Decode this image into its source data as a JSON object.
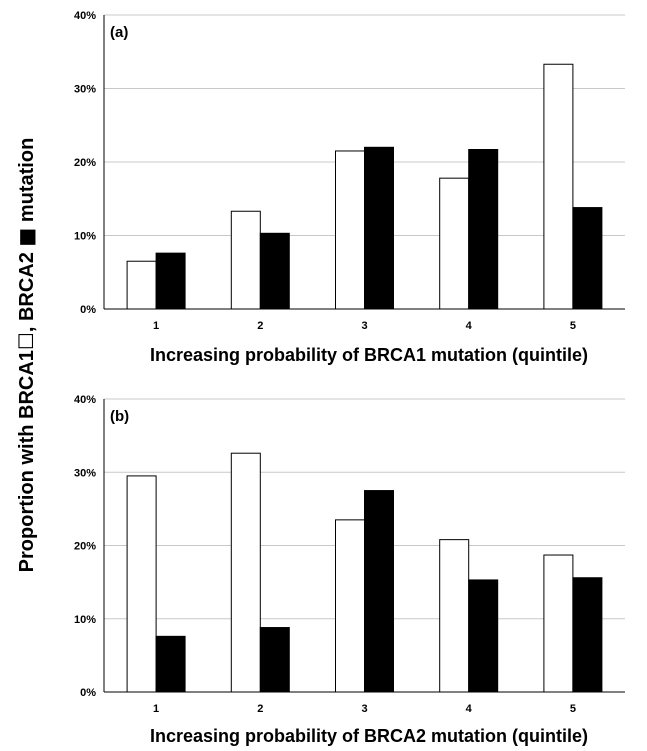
{
  "ylabel_parts": {
    "before": "Proportion with BRCA1",
    "after": ", BRCA2 ",
    "end": " mutation"
  },
  "colors": {
    "brca1": "#ffffff",
    "brca2": "#000000",
    "grid": "#c8c8c8"
  },
  "chart_data": [
    {
      "type": "bar",
      "panel_label": "(a)",
      "categories": [
        "1",
        "2",
        "3",
        "4",
        "5"
      ],
      "xlabel": "Increasing probability of BRCA1 mutation (quintile)",
      "ylim": [
        0,
        40
      ],
      "yticks": [
        "0%",
        "10%",
        "20%",
        "30%",
        "40%"
      ],
      "grid": true,
      "series": [
        {
          "values": [
            6.5,
            13.3,
            21.5,
            17.8,
            33.3
          ]
        },
        {
          "values": [
            7.6,
            10.3,
            22.0,
            21.7,
            13.8
          ]
        }
      ]
    },
    {
      "type": "bar",
      "panel_label": "(b)",
      "categories": [
        "1",
        "2",
        "3",
        "4",
        "5"
      ],
      "xlabel": "Increasing probability of BRCA2 mutation (quintile)",
      "ylim": [
        0,
        40
      ],
      "yticks": [
        "0%",
        "10%",
        "20%",
        "30%",
        "40%"
      ],
      "grid": true,
      "series": [
        {
          "values": [
            29.5,
            32.6,
            23.5,
            20.8,
            18.7
          ]
        },
        {
          "values": [
            7.6,
            8.8,
            27.5,
            15.3,
            15.6
          ]
        }
      ]
    }
  ]
}
